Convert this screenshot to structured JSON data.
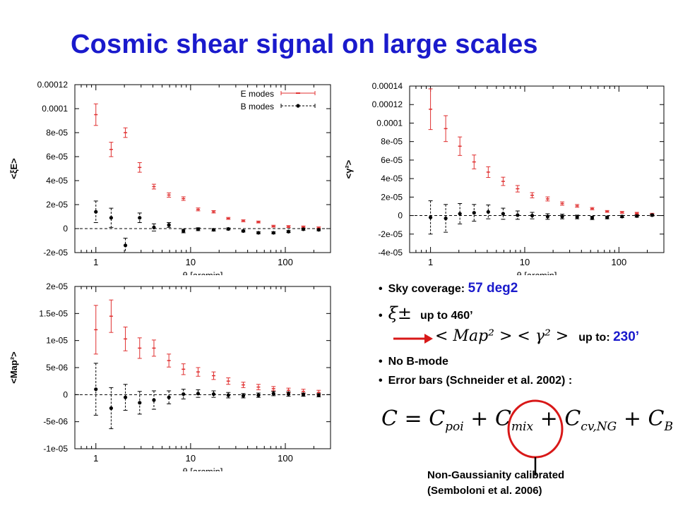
{
  "slide": {
    "title": "Cosmic shear signal on large scales",
    "bullets": {
      "sky_label": "Sky coverage:",
      "sky_value": "57 deg2",
      "xi_symbol": "ξ±",
      "xi_text": "up to 460’",
      "map_expr": "< Map² >   < γ² >",
      "map_text": "up to:",
      "map_value": "230’",
      "no_b": "No B-mode",
      "error_bars": "Error bars (Schneider et al. 2002) :"
    },
    "formula": {
      "lhs": "C",
      "eq": "=",
      "t1": "C",
      "t1_sub": "poi",
      "t2": "C",
      "t2_sub": "mix",
      "t3": "C",
      "t3_sub": "cv,NG",
      "t4": "C",
      "t4_sub": "B",
      "plus": "+"
    },
    "note": {
      "line1": "Non-Gaussianity calibrated",
      "line2": "(Semboloni et al. 2006)"
    },
    "colors": {
      "title": "#1a1acc",
      "emode": "#e03030",
      "bmode": "#000000",
      "arrow": "#d81818",
      "circle": "#d81818"
    }
  },
  "chart_data": [
    {
      "type": "scatter",
      "ylabel": "<ξE>",
      "xlabel": "θ [arcmin]",
      "xscale": "log",
      "xlim": [
        0.6,
        300
      ],
      "ylim": [
        -2e-05,
        0.00012
      ],
      "xticks": [
        "1",
        "10",
        "100"
      ],
      "yticks": [
        "-2e-05",
        "0",
        "2e-05",
        "4e-05",
        "6e-05",
        "8e-05",
        "0.0001",
        "0.00012"
      ],
      "legend": {
        "position": "top-right",
        "entries": [
          "E modes",
          "B modes"
        ]
      },
      "series": [
        {
          "name": "E modes",
          "x": [
            1,
            1.45,
            2.05,
            2.9,
            4.1,
            5.9,
            8.4,
            12,
            17.5,
            25,
            36,
            52,
            75,
            108,
            155,
            225
          ],
          "y": [
            9.5e-05,
            6.6e-05,
            8e-05,
            5.1e-05,
            3.5e-05,
            2.8e-05,
            2.5e-05,
            1.6e-05,
            1.4e-05,
            8.5e-06,
            6.5e-06,
            5.5e-06,
            2e-06,
            1.7e-06,
            1.4e-06,
            6e-07
          ],
          "err": [
            9e-06,
            6e-06,
            4e-06,
            4e-06,
            2e-06,
            1.8e-06,
            1.5e-06,
            1.2e-06,
            1e-06,
            8e-07,
            8e-07,
            8e-07,
            8e-07,
            8e-07,
            8e-07,
            8e-07
          ]
        },
        {
          "name": "B modes",
          "x": [
            1,
            1.45,
            2.05,
            2.9,
            4.1,
            5.9,
            8.4,
            12,
            17.5,
            25,
            36,
            52,
            75,
            108,
            155,
            225
          ],
          "y": [
            1.4e-05,
            9e-06,
            -1.4e-05,
            9e-06,
            1e-06,
            3e-06,
            -2e-06,
            -5e-07,
            -1e-06,
            -3e-07,
            -2e-06,
            -3.5e-06,
            -3.5e-06,
            -2.5e-06,
            -5e-07,
            -1e-06
          ],
          "err": [
            9e-06,
            8e-06,
            6e-06,
            4e-06,
            3e-06,
            2e-06,
            1.5e-06,
            1.2e-06,
            1e-06,
            8e-07,
            8e-07,
            8e-07,
            8e-07,
            8e-07,
            8e-07,
            8e-07
          ]
        }
      ]
    },
    {
      "type": "scatter",
      "ylabel": "<γ²>",
      "xlabel": "θ [arcmin]",
      "xscale": "log",
      "xlim": [
        0.6,
        300
      ],
      "ylim": [
        -4e-05,
        0.00014
      ],
      "xticks": [
        "1",
        "10",
        "100"
      ],
      "yticks": [
        "-4e-05",
        "-2e-05",
        "0",
        "2e-05",
        "4e-05",
        "6e-05",
        "8e-05",
        "0.0001",
        "0.00012",
        "0.00014"
      ],
      "series": [
        {
          "name": "",
          "x": [
            1,
            1.45,
            2.05,
            2.9,
            4.1,
            5.9,
            8.4,
            12,
            17.5,
            25,
            36,
            52,
            75,
            108,
            155,
            225
          ],
          "y": [
            0.000115,
            9.4e-05,
            7.5e-05,
            5.8e-05,
            4.7e-05,
            3.7e-05,
            2.9e-05,
            2.2e-05,
            1.8e-05,
            1.3e-05,
            1.05e-05,
            7.5e-06,
            4.5e-06,
            3.5e-06,
            2.5e-06,
            1.5e-06
          ],
          "err": [
            2.2e-05,
            1.4e-05,
            1e-05,
            7.5e-06,
            5.8e-06,
            4.5e-06,
            3.5e-06,
            2.8e-06,
            2.2e-06,
            1.8e-06,
            1.5e-06,
            1.2e-06,
            1e-06,
            1e-06,
            1e-06,
            1e-06
          ]
        },
        {
          "name": "",
          "x": [
            1,
            1.45,
            2.05,
            2.9,
            4.1,
            5.9,
            8.4,
            12,
            17.5,
            25,
            36,
            52,
            75,
            108,
            155,
            225
          ],
          "y": [
            -2e-06,
            -3e-06,
            2e-06,
            3e-06,
            4e-06,
            2e-06,
            5e-07,
            0,
            -1e-06,
            -1e-06,
            -1.5e-06,
            -2.5e-06,
            -2e-06,
            -1e-06,
            -5e-07,
            5e-07
          ],
          "err": [
            1.8e-05,
            1.5e-05,
            1.1e-05,
            9e-06,
            7.5e-06,
            6e-06,
            4.5e-06,
            3.5e-06,
            3e-06,
            2.5e-06,
            2e-06,
            1.8e-06,
            1.5e-06,
            1.2e-06,
            1.2e-06,
            1e-06
          ]
        }
      ]
    },
    {
      "type": "scatter",
      "ylabel": "<Map²>",
      "xlabel": "θ [arcmin]",
      "xscale": "log",
      "xlim": [
        0.6,
        300
      ],
      "ylim": [
        -1e-05,
        2e-05
      ],
      "xticks": [
        "1",
        "10",
        "100"
      ],
      "yticks": [
        "-1e-05",
        "-5e-06",
        "0",
        "5e-06",
        "1e-05",
        "1.5e-05",
        "2e-05"
      ],
      "series": [
        {
          "name": "",
          "x": [
            1,
            1.45,
            2.05,
            2.9,
            4.1,
            5.9,
            8.4,
            12,
            17.5,
            25,
            36,
            52,
            75,
            108,
            155,
            225
          ],
          "y": [
            1.2e-05,
            1.45e-05,
            1.03e-05,
            8.6e-06,
            8.6e-06,
            6.3e-06,
            4.7e-06,
            4.2e-06,
            3.5e-06,
            2.5e-06,
            1.8e-06,
            1.4e-06,
            1.1e-06,
            8e-07,
            6e-07,
            4e-07
          ],
          "err": [
            4.5e-06,
            3e-06,
            2.2e-06,
            1.9e-06,
            1.5e-06,
            1.2e-06,
            1e-06,
            8e-07,
            7e-07,
            6e-07,
            5e-07,
            5e-07,
            4e-07,
            4e-07,
            4e-07,
            4e-07
          ]
        },
        {
          "name": "",
          "x": [
            1,
            1.45,
            2.05,
            2.9,
            4.1,
            5.9,
            8.4,
            12,
            17.5,
            25,
            36,
            52,
            75,
            108,
            155,
            225
          ],
          "y": [
            1e-06,
            -2.5e-06,
            -5e-07,
            -1.5e-06,
            -1e-06,
            -5e-07,
            1e-07,
            2e-07,
            1e-07,
            -1e-07,
            -2e-07,
            -1e-07,
            2e-07,
            1e-07,
            0,
            -1e-07
          ],
          "err": [
            4.8e-06,
            3.8e-06,
            2.4e-06,
            2.1e-06,
            1.7e-06,
            1.2e-06,
            9e-07,
            7e-07,
            6e-07,
            5e-07,
            4e-07,
            4e-07,
            4e-07,
            4e-07,
            3e-07,
            3e-07
          ]
        }
      ]
    }
  ]
}
